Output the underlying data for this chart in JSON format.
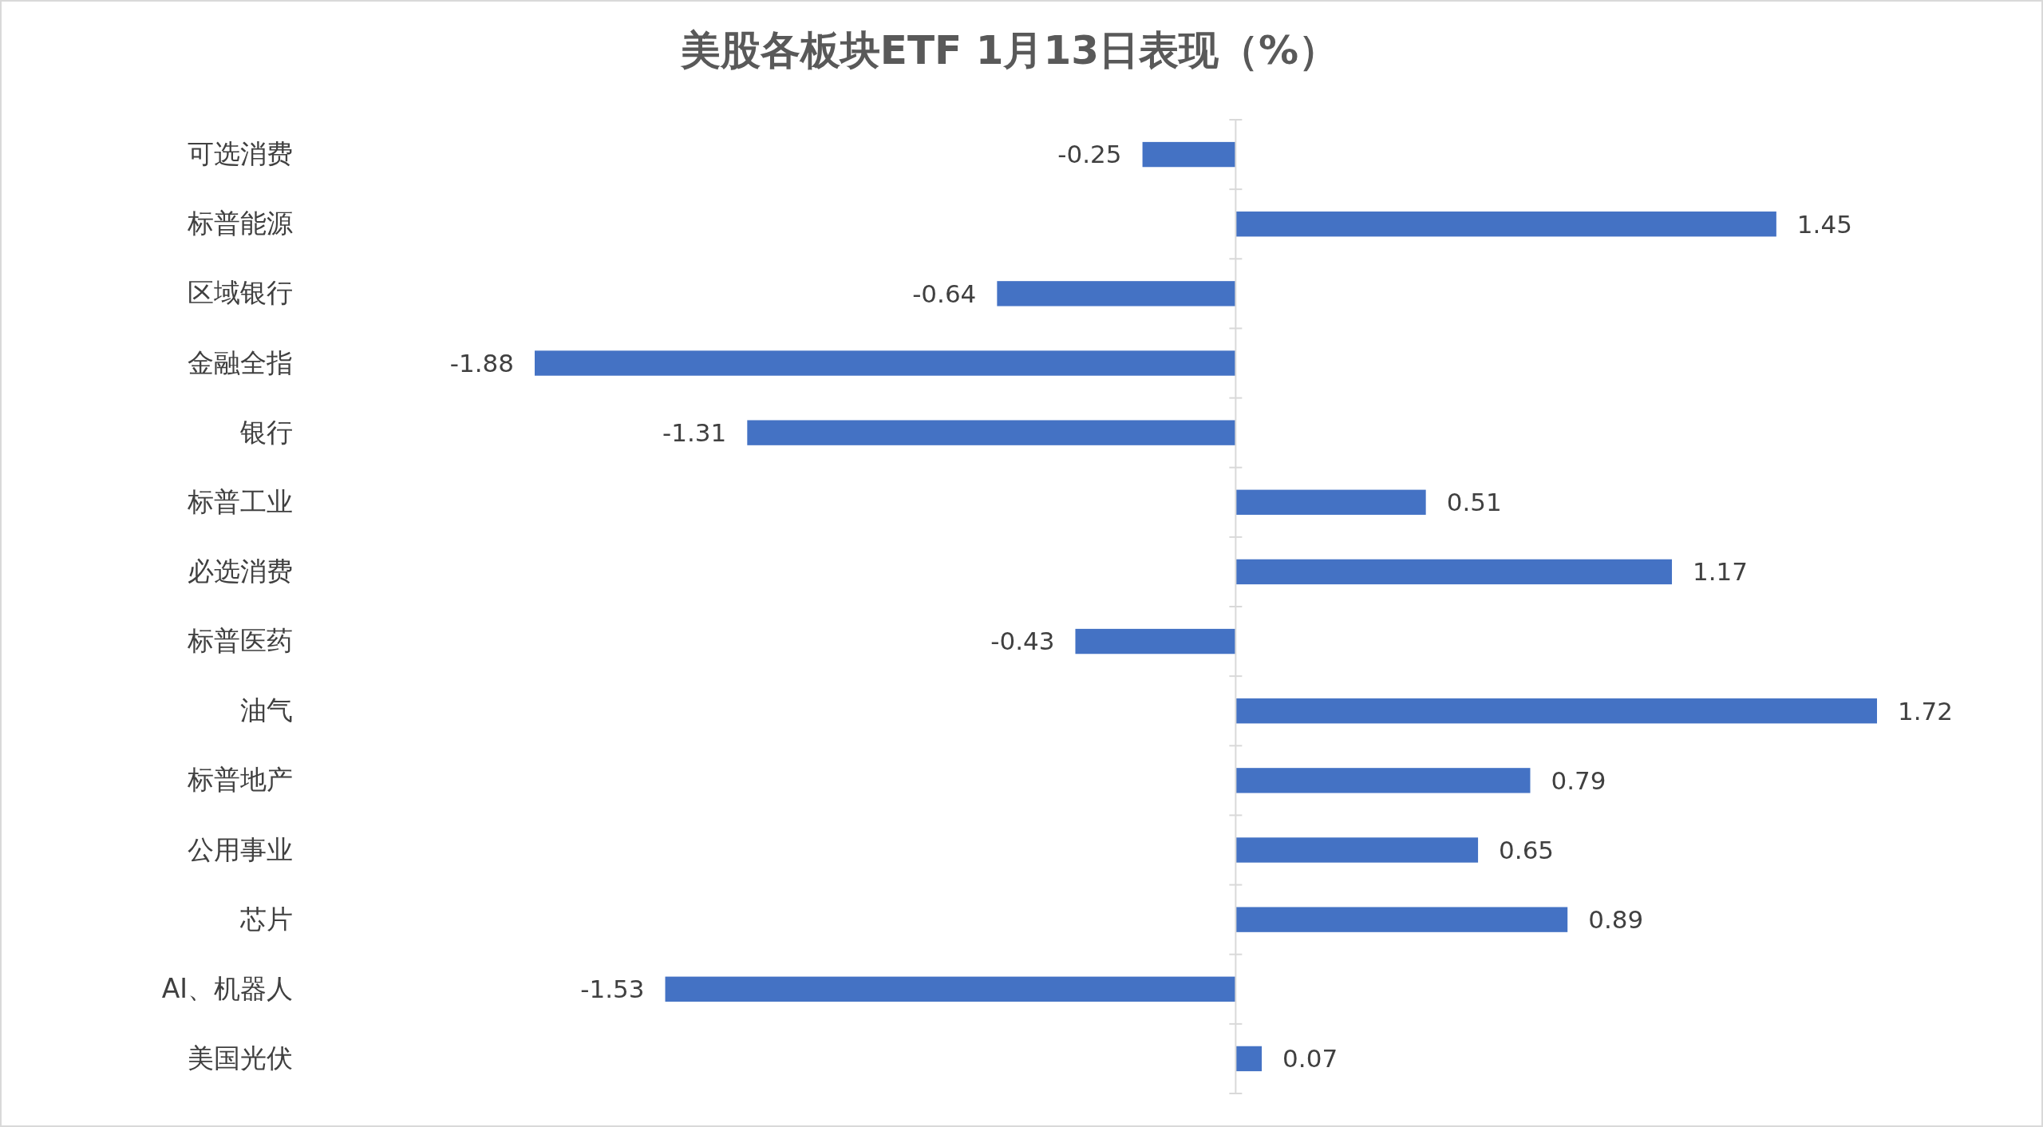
{
  "chart_data": {
    "type": "bar",
    "orientation": "horizontal",
    "title": "美股各板块ETF  1月13日表现（%）",
    "categories": [
      "可选消费",
      "标普能源",
      "区域银行",
      "金融全指",
      "银行",
      "标普工业",
      "必选消费",
      "标普医药",
      "油气",
      "标普地产",
      "公用事业",
      "芯片",
      "AI、机器人",
      "美国光伏"
    ],
    "values": [
      -0.25,
      1.45,
      -0.64,
      -1.88,
      -1.31,
      0.51,
      1.17,
      -0.43,
      1.72,
      0.79,
      0.65,
      0.89,
      -1.53,
      0.07
    ],
    "color": "#4472c4",
    "data_labels": true
  }
}
